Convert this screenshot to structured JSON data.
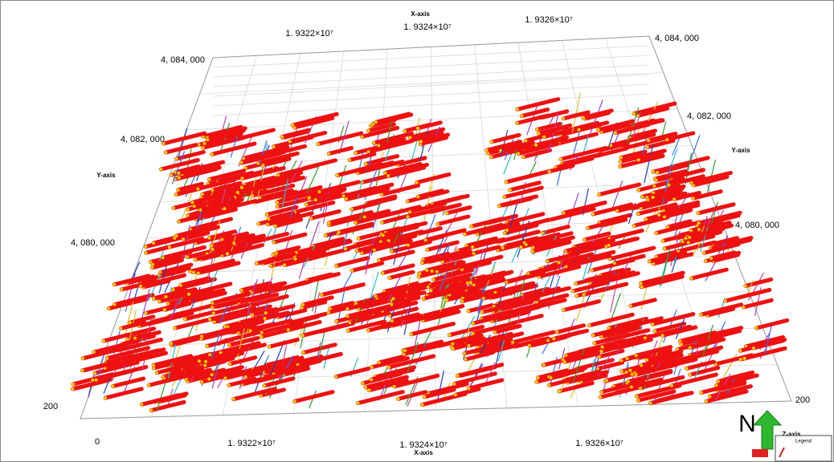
{
  "axes": {
    "x_title_top": "X-axis",
    "x_title_bottom": "X-axis",
    "y_title_left": "Y-axis",
    "y_title_right": "Y-axis",
    "z_title": "Z-axis",
    "x_ticks_top": [
      "1. 9322×10⁷",
      "1. 9324×10⁷",
      "1. 9326×10⁷"
    ],
    "x_ticks_bottom": [
      "1. 9322×10⁷",
      "1. 9324×10⁷",
      "1. 9326×10⁷"
    ],
    "y_ticks_left": [
      "4, 084, 000",
      "4, 082, 000",
      "4, 080, 000"
    ],
    "y_ticks_right": [
      "4, 084, 000",
      "4, 082, 000",
      "4, 080, 000"
    ],
    "z_ticks_left": [
      "200",
      "0"
    ],
    "z_ticks_right": [
      "200"
    ]
  },
  "compass": "N",
  "legend": {
    "title": "Legend"
  }
}
